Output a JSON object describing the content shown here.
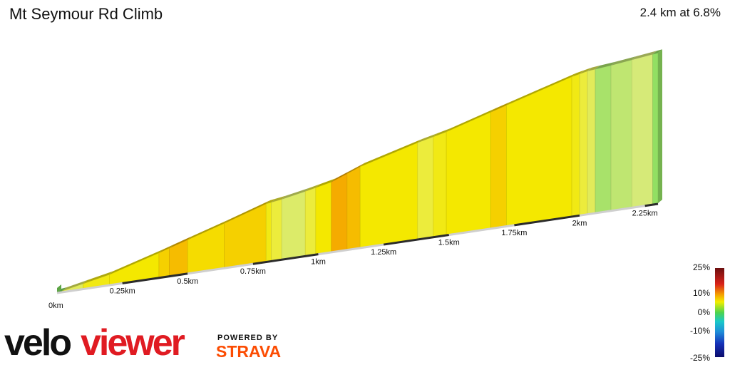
{
  "header": {
    "title": "Mt Seymour Rd Climb",
    "summary": "2.4 km at 6.8%"
  },
  "chart_data": {
    "type": "area",
    "title": "Mt Seymour Rd Climb",
    "xlabel": "",
    "ylabel": "",
    "x_unit": "km",
    "x_range": [
      0,
      2.4
    ],
    "x_ticks": [
      "0km",
      "0.25km",
      "0.5km",
      "0.75km",
      "1km",
      "1.25km",
      "1.5km",
      "1.75km",
      "2km",
      "2.25km"
    ],
    "x_tick_values": [
      0,
      0.25,
      0.5,
      0.75,
      1.0,
      1.25,
      1.5,
      1.75,
      2.0,
      2.25
    ],
    "average_gradient_pct": 6.8,
    "total_distance_km": 2.4,
    "segments": [
      {
        "start_km": 0.0,
        "end_km": 0.02,
        "gradient_pct": 1
      },
      {
        "start_km": 0.02,
        "end_km": 0.1,
        "gradient_pct": 4
      },
      {
        "start_km": 0.1,
        "end_km": 0.2,
        "gradient_pct": 6
      },
      {
        "start_km": 0.2,
        "end_km": 0.39,
        "gradient_pct": 6.5
      },
      {
        "start_km": 0.39,
        "end_km": 0.43,
        "gradient_pct": 7.5
      },
      {
        "start_km": 0.43,
        "end_km": 0.5,
        "gradient_pct": 8.5
      },
      {
        "start_km": 0.5,
        "end_km": 0.64,
        "gradient_pct": 7
      },
      {
        "start_km": 0.64,
        "end_km": 0.8,
        "gradient_pct": 7.5
      },
      {
        "start_km": 0.8,
        "end_km": 0.82,
        "gradient_pct": 6
      },
      {
        "start_km": 0.82,
        "end_km": 0.86,
        "gradient_pct": 5
      },
      {
        "start_km": 0.86,
        "end_km": 0.95,
        "gradient_pct": 3.5
      },
      {
        "start_km": 0.95,
        "end_km": 0.99,
        "gradient_pct": 5
      },
      {
        "start_km": 0.99,
        "end_km": 1.05,
        "gradient_pct": 6.5
      },
      {
        "start_km": 1.05,
        "end_km": 1.11,
        "gradient_pct": 9.5
      },
      {
        "start_km": 1.11,
        "end_km": 1.16,
        "gradient_pct": 8.5
      },
      {
        "start_km": 1.16,
        "end_km": 1.38,
        "gradient_pct": 6.5
      },
      {
        "start_km": 1.38,
        "end_km": 1.44,
        "gradient_pct": 5
      },
      {
        "start_km": 1.44,
        "end_km": 1.49,
        "gradient_pct": 6
      },
      {
        "start_km": 1.49,
        "end_km": 1.66,
        "gradient_pct": 6.5
      },
      {
        "start_km": 1.66,
        "end_km": 1.72,
        "gradient_pct": 7.5
      },
      {
        "start_km": 1.72,
        "end_km": 1.97,
        "gradient_pct": 6.5
      },
      {
        "start_km": 1.97,
        "end_km": 2.0,
        "gradient_pct": 6
      },
      {
        "start_km": 2.0,
        "end_km": 2.03,
        "gradient_pct": 5
      },
      {
        "start_km": 2.03,
        "end_km": 2.06,
        "gradient_pct": 4
      },
      {
        "start_km": 2.06,
        "end_km": 2.12,
        "gradient_pct": 2
      },
      {
        "start_km": 2.12,
        "end_km": 2.2,
        "gradient_pct": 2.5
      },
      {
        "start_km": 2.2,
        "end_km": 2.28,
        "gradient_pct": 3
      },
      {
        "start_km": 2.28,
        "end_km": 2.3,
        "gradient_pct": 1.5
      }
    ],
    "elevation_profile_km_m": [
      [
        0.0,
        0
      ],
      [
        0.02,
        0.5
      ],
      [
        0.2,
        9
      ],
      [
        0.39,
        22
      ],
      [
        0.5,
        30
      ],
      [
        0.64,
        40
      ],
      [
        0.8,
        52
      ],
      [
        0.86,
        54
      ],
      [
        0.95,
        58
      ],
      [
        1.05,
        63
      ],
      [
        1.16,
        73
      ],
      [
        1.38,
        87
      ],
      [
        1.49,
        93
      ],
      [
        1.72,
        109
      ],
      [
        1.97,
        126
      ],
      [
        2.03,
        129
      ],
      [
        2.12,
        131
      ],
      [
        2.3,
        136
      ]
    ],
    "grid": false,
    "legend": {
      "position": "bottom-right",
      "labels": [
        "25%",
        "10%",
        "0%",
        "-10%",
        "-25%"
      ],
      "values": [
        25,
        10,
        0,
        -10,
        -25
      ]
    }
  },
  "branding": {
    "logo_text_1": "velo",
    "logo_text_2": "viewer",
    "powered_by": "POWERED BY",
    "strava": "STRAVA",
    "colors": {
      "velo_black": "#111111",
      "viewer_red": "#e01b22",
      "strava_orange": "#fc4c02"
    }
  }
}
